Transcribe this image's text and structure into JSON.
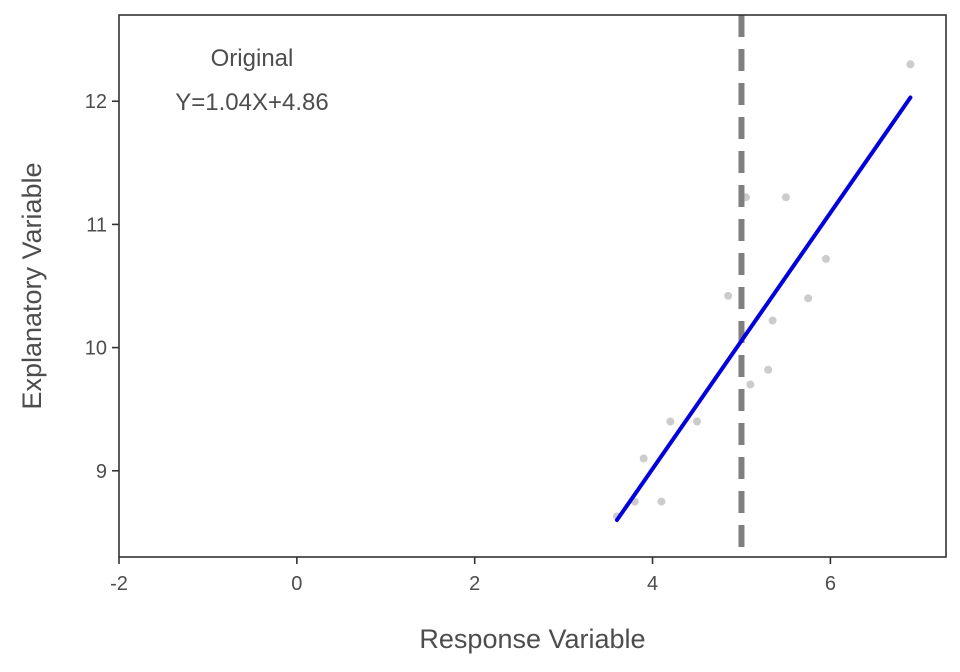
{
  "chart_data": {
    "type": "scatter",
    "title": "",
    "xlabel": "Response Variable",
    "ylabel": "Explanatory Variable",
    "xlim": [
      -2,
      7.3
    ],
    "ylim": [
      8.3,
      12.7
    ],
    "x_ticks": [
      -2,
      0,
      2,
      4,
      6
    ],
    "x_tick_labels": [
      "-2",
      "0",
      "2",
      "4",
      "6"
    ],
    "y_ticks": [
      9,
      10,
      11,
      12
    ],
    "y_tick_labels": [
      "9",
      "10",
      "11",
      "12"
    ],
    "grid": false,
    "points": [
      {
        "x": 3.6,
        "y": 8.63
      },
      {
        "x": 3.8,
        "y": 8.75
      },
      {
        "x": 3.9,
        "y": 9.1
      },
      {
        "x": 4.1,
        "y": 8.75
      },
      {
        "x": 4.2,
        "y": 9.4
      },
      {
        "x": 4.5,
        "y": 9.4
      },
      {
        "x": 4.85,
        "y": 10.42
      },
      {
        "x": 5.05,
        "y": 11.22
      },
      {
        "x": 5.1,
        "y": 9.7
      },
      {
        "x": 5.3,
        "y": 9.82
      },
      {
        "x": 5.35,
        "y": 10.22
      },
      {
        "x": 5.5,
        "y": 11.22
      },
      {
        "x": 5.75,
        "y": 10.4
      },
      {
        "x": 5.95,
        "y": 10.72
      },
      {
        "x": 6.9,
        "y": 12.3
      }
    ],
    "point_color": "#cccccc",
    "fit_line": {
      "slope": 1.04,
      "intercept": 4.86,
      "x_start": 3.6,
      "x_end": 6.9,
      "color": "#0000dd"
    },
    "reference_line": {
      "x": 5.0,
      "style": "dashed",
      "color": "#7f7f7f"
    },
    "annotations": {
      "label": "Original",
      "equation": "Y=1.04X+4.86"
    }
  }
}
